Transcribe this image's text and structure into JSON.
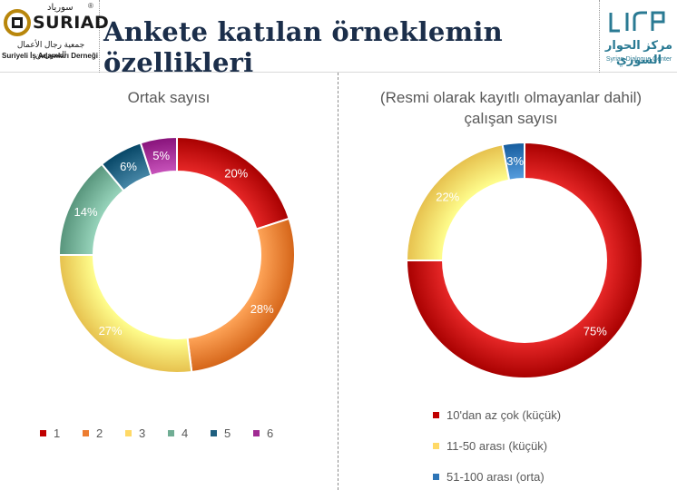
{
  "header": {
    "title": "Ankete katılan örneklemin özellikleri",
    "left_logo": {
      "word": "SURIAD",
      "arabic_top": "سورياد",
      "registered": "®",
      "arabic_sub": "جمعية رجال الأعمال السوريين",
      "latin_sub": "Suriyeli İş Adamları Derneği"
    },
    "right_logo": {
      "arabic": "مركز الحوار السوري",
      "latin": "Syrian Dialogue Center"
    }
  },
  "chart_data": [
    {
      "type": "pie",
      "donut": true,
      "title": "Ortak sayısı",
      "categories": [
        "1",
        "2",
        "3",
        "4",
        "5",
        "6"
      ],
      "values": [
        20,
        28,
        27,
        14,
        6,
        5
      ],
      "labels": [
        "20%",
        "28%",
        "27%",
        "14%",
        "6%",
        "5%"
      ],
      "colors": [
        "#c00000",
        "#ed7d31",
        "#ffd966",
        "#70ad94",
        "#1f5f7f",
        "#a02b93"
      ],
      "legend": "bottom"
    },
    {
      "type": "pie",
      "donut": true,
      "title": "(Resmi olarak kayıtlı olmayanlar dahil) çalışan sayısı",
      "categories": [
        "10'dan az çok (küçük)",
        "11-50 arası (küçük)",
        "51-100 arası (orta)"
      ],
      "values": [
        75,
        22,
        3
      ],
      "labels": [
        "75%",
        "22%",
        "3%"
      ],
      "colors": [
        "#c00000",
        "#ffd966",
        "#2e75b6"
      ],
      "legend": "bottom"
    }
  ]
}
